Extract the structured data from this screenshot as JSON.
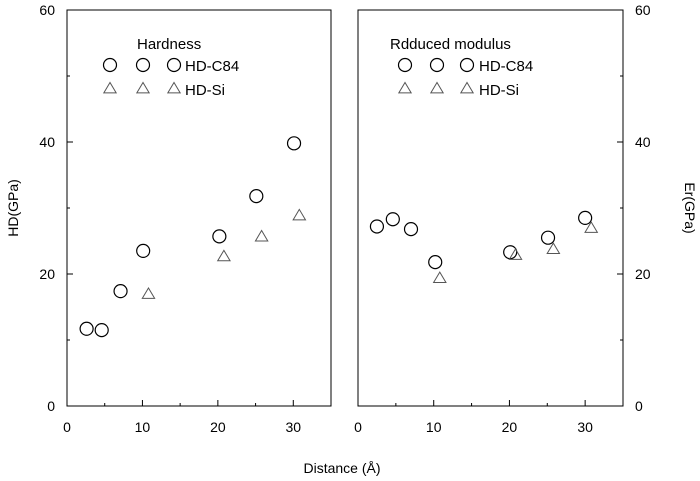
{
  "chart_data": [
    {
      "type": "scatter",
      "panel": "left",
      "legend_title": "Hardness",
      "ylabel": "HD(GPa)",
      "xlim": [
        0,
        35
      ],
      "ylim": [
        0,
        60
      ],
      "x_ticks": [
        0,
        10,
        20,
        30
      ],
      "y_ticks": [
        0,
        20,
        40,
        60
      ],
      "y_axis_side": "left",
      "legend_placement": "top-left",
      "grid": false,
      "series": [
        {
          "name": "HD-C84",
          "marker": "circle",
          "points": [
            [
              2.6,
              11.7
            ],
            [
              4.6,
              11.5
            ],
            [
              7.1,
              17.4
            ],
            [
              10.1,
              23.5
            ],
            [
              20.2,
              25.7
            ],
            [
              25.1,
              31.8
            ],
            [
              30.1,
              39.8
            ]
          ]
        },
        {
          "name": "HD-Si",
          "marker": "triangle",
          "points": [
            [
              10.8,
              16.9
            ],
            [
              20.8,
              22.6
            ],
            [
              25.8,
              25.6
            ],
            [
              30.8,
              28.8
            ]
          ]
        }
      ]
    },
    {
      "type": "scatter",
      "panel": "right",
      "legend_title": "Rdduced modulus",
      "ylabel": "Er(GPa)",
      "xlim": [
        0,
        35
      ],
      "ylim": [
        0,
        60
      ],
      "x_ticks": [
        0,
        10,
        20,
        30
      ],
      "y_ticks": [
        0,
        20,
        40,
        60
      ],
      "y_axis_side": "right",
      "legend_placement": "top-left",
      "grid": false,
      "series": [
        {
          "name": "HD-C84",
          "marker": "circle",
          "points": [
            [
              2.5,
              27.2
            ],
            [
              4.6,
              28.3
            ],
            [
              7.0,
              26.8
            ],
            [
              10.2,
              21.8
            ],
            [
              20.1,
              23.3
            ],
            [
              25.1,
              25.5
            ],
            [
              30.0,
              28.5
            ]
          ]
        },
        {
          "name": "HD-Si",
          "marker": "triangle",
          "points": [
            [
              10.8,
              19.3
            ],
            [
              20.8,
              22.8
            ],
            [
              25.8,
              23.7
            ],
            [
              30.8,
              26.9
            ]
          ]
        }
      ]
    }
  ],
  "shared": {
    "xlabel": "Distance (Å)"
  }
}
